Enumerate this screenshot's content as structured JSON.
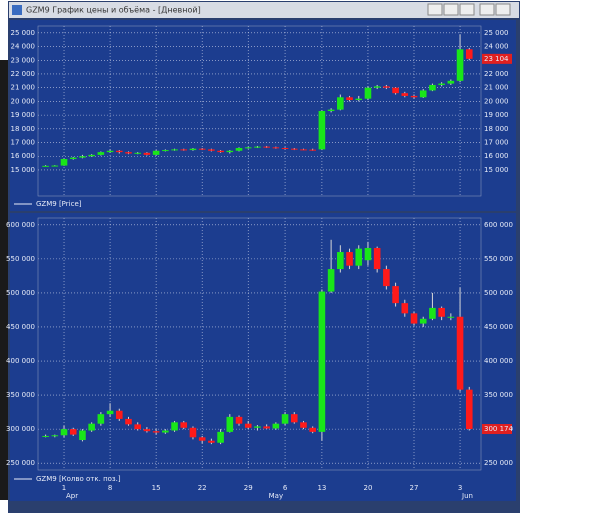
{
  "window": {
    "title": "GZM9 График цены и объёма - [Дневной]"
  },
  "chart_data": [
    {
      "type": "candlestick",
      "series": [
        {
          "name": "GZM9 [Price]",
          "open": [
            15300,
            15300,
            15320,
            15800,
            15900,
            16000,
            16100,
            16300,
            16400,
            16300,
            16200,
            16250,
            16100,
            16400,
            16450,
            16500,
            16450,
            16550,
            16500,
            16400,
            16300,
            16400,
            16600,
            16650,
            16700,
            16650,
            16600,
            16550,
            16500,
            16480,
            16500,
            19300,
            19400,
            20300,
            20100,
            20200,
            21000,
            21100,
            21000,
            20600,
            20400,
            20300,
            20800,
            21200,
            21300,
            21500,
            23800
          ],
          "high": [
            15350,
            15350,
            15850,
            15950,
            16100,
            16150,
            16350,
            16500,
            16450,
            16350,
            16300,
            16300,
            16450,
            16500,
            16550,
            16550,
            16600,
            16600,
            16550,
            16450,
            16450,
            16650,
            16700,
            16750,
            16750,
            16700,
            16650,
            16600,
            16550,
            16550,
            19350,
            19500,
            20500,
            20400,
            20400,
            21100,
            21200,
            21200,
            21050,
            20700,
            20500,
            20900,
            21300,
            21400,
            21600,
            24900,
            23900
          ],
          "low": [
            15250,
            15250,
            15300,
            15750,
            15850,
            15950,
            16050,
            16250,
            16200,
            16150,
            16150,
            16050,
            16050,
            16350,
            16400,
            16400,
            16400,
            16450,
            16350,
            16250,
            16200,
            16350,
            16550,
            16600,
            16600,
            16550,
            16500,
            16450,
            16450,
            16400,
            16450,
            19200,
            19350,
            20000,
            20000,
            20100,
            20900,
            20900,
            20500,
            20300,
            20200,
            20250,
            20750,
            21100,
            21200,
            21400,
            23000
          ],
          "close": [
            15300,
            15320,
            15800,
            15900,
            16000,
            16100,
            16300,
            16400,
            16300,
            16200,
            16250,
            16100,
            16400,
            16450,
            16500,
            16450,
            16550,
            16500,
            16400,
            16300,
            16400,
            16600,
            16650,
            16700,
            16650,
            16600,
            16550,
            16500,
            16480,
            16450,
            19300,
            19400,
            20300,
            20100,
            20200,
            21000,
            21100,
            21000,
            20600,
            20400,
            20300,
            20800,
            21200,
            21300,
            21500,
            23800,
            23104
          ]
        }
      ],
      "up_color": "#19e619",
      "down_color": "#ff1a1a",
      "last_value_label": "23 104",
      "ylim": [
        13100,
        25500
      ],
      "yticks": [
        {
          "value": 15000,
          "label": "15 000"
        },
        {
          "value": 16000,
          "label": "16 000"
        },
        {
          "value": 17000,
          "label": "17 000"
        },
        {
          "value": 18000,
          "label": "18 000"
        },
        {
          "value": 19000,
          "label": "19 000"
        },
        {
          "value": 20000,
          "label": "20 000"
        },
        {
          "value": 21000,
          "label": "21 000"
        },
        {
          "value": 22000,
          "label": "22 000"
        },
        {
          "value": 23000,
          "label": "23 000"
        },
        {
          "value": 24000,
          "label": "24 000"
        },
        {
          "value": 25000,
          "label": "25 000"
        }
      ],
      "grid": true
    },
    {
      "type": "candlestick",
      "categories": [
        null,
        null,
        "1",
        null,
        null,
        null,
        null,
        "8",
        null,
        null,
        null,
        null,
        "15",
        null,
        null,
        null,
        null,
        "22",
        null,
        null,
        null,
        null,
        "29",
        null,
        null,
        null,
        "6",
        null,
        null,
        null,
        "13",
        null,
        null,
        null,
        null,
        "20",
        null,
        null,
        null,
        null,
        "27",
        null,
        null,
        null,
        null,
        "3",
        null
      ],
      "month_labels": [
        null,
        null,
        "Apr",
        null,
        null,
        null,
        null,
        null,
        null,
        null,
        null,
        null,
        null,
        null,
        null,
        null,
        null,
        null,
        null,
        null,
        null,
        null,
        null,
        null,
        "May",
        null,
        null,
        null,
        null,
        null,
        null,
        null,
        null,
        null,
        null,
        null,
        null,
        null,
        null,
        null,
        null,
        null,
        null,
        null,
        null,
        "Jun",
        null
      ],
      "series": [
        {
          "name": "GZM9 [Колво отк. поз.]",
          "open": [
            290000,
            290000,
            291000,
            300000,
            284000,
            298000,
            308000,
            322000,
            327000,
            315000,
            307000,
            300000,
            297000,
            295000,
            298000,
            310000,
            302000,
            288000,
            283000,
            280000,
            296000,
            318000,
            308000,
            302000,
            304000,
            301000,
            308000,
            322000,
            310000,
            302000,
            296000,
            502000,
            535000,
            560000,
            540000,
            548000,
            566000,
            535000,
            510000,
            485000,
            470000,
            455000,
            462000,
            478000,
            465000,
            465000,
            358000
          ],
          "high": [
            292000,
            292000,
            305000,
            302000,
            300000,
            310000,
            325000,
            338000,
            330000,
            318000,
            310000,
            303000,
            300000,
            300000,
            312000,
            312000,
            304000,
            290000,
            286000,
            300000,
            322000,
            320000,
            312000,
            306000,
            307000,
            310000,
            325000,
            325000,
            312000,
            304000,
            505000,
            578000,
            570000,
            565000,
            570000,
            575000,
            568000,
            540000,
            515000,
            490000,
            472000,
            465000,
            500000,
            480000,
            470000,
            508000,
            362000
          ],
          "low": [
            288000,
            288000,
            288000,
            290000,
            282000,
            296000,
            305000,
            318000,
            312000,
            305000,
            298000,
            295000,
            292000,
            293000,
            296000,
            300000,
            285000,
            279000,
            278000,
            278000,
            295000,
            305000,
            300000,
            298000,
            300000,
            299000,
            306000,
            308000,
            300000,
            294000,
            283000,
            500000,
            530000,
            535000,
            535000,
            540000,
            530000,
            505000,
            480000,
            465000,
            452000,
            450000,
            460000,
            460000,
            460000,
            355000,
            298000
          ],
          "close": [
            290000,
            291000,
            300000,
            292000,
            298000,
            308000,
            322000,
            327000,
            315000,
            307000,
            300000,
            297000,
            295000,
            298000,
            310000,
            302000,
            288000,
            283000,
            280000,
            296000,
            318000,
            308000,
            302000,
            304000,
            301000,
            308000,
            322000,
            310000,
            302000,
            296000,
            502000,
            535000,
            560000,
            540000,
            565000,
            566000,
            535000,
            510000,
            485000,
            470000,
            455000,
            462000,
            478000,
            465000,
            465000,
            358000,
            300174
          ]
        }
      ],
      "up_color": "#19e619",
      "down_color": "#ff1a1a",
      "last_value_label": "300 174",
      "ylim": [
        240000,
        610000
      ],
      "yticks": [
        {
          "value": 250000,
          "label": "250 000"
        },
        {
          "value": 300000,
          "label": "300 000"
        },
        {
          "value": 350000,
          "label": "350 000"
        },
        {
          "value": 400000,
          "label": "400 000"
        },
        {
          "value": 450000,
          "label": "450 000"
        },
        {
          "value": 500000,
          "label": "500 000"
        },
        {
          "value": 550000,
          "label": "550 000"
        },
        {
          "value": 600000,
          "label": "600 000"
        }
      ],
      "grid": true
    }
  ]
}
